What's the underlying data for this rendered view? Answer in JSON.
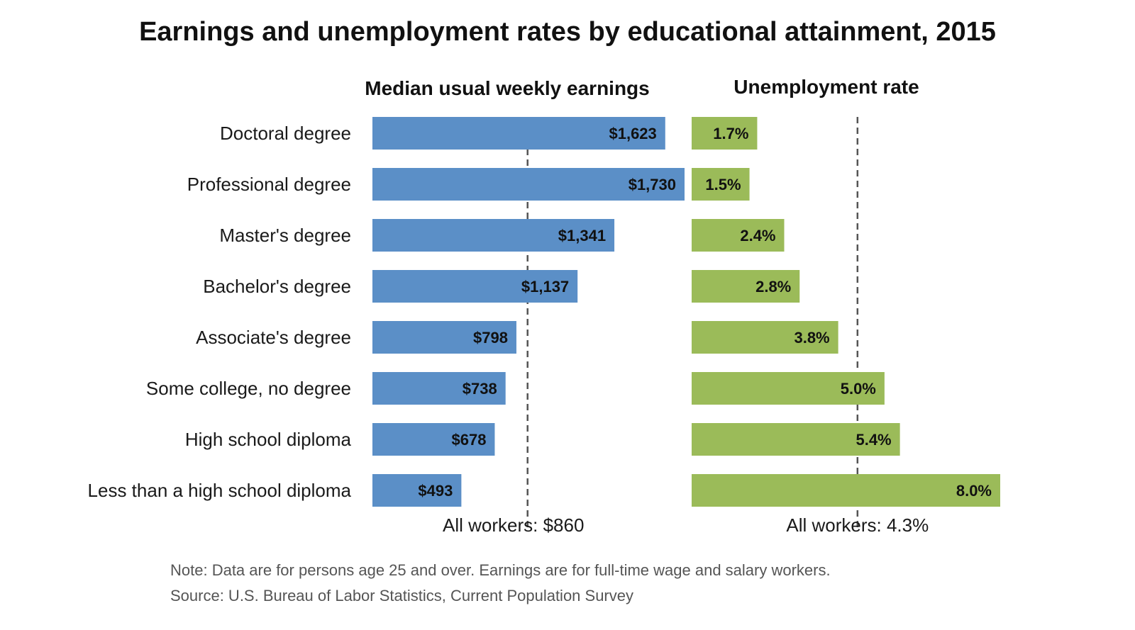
{
  "title": "Earnings and unemployment rates by educational attainment, 2015",
  "note": "Note: Data are for persons age 25 and over. Earnings are for full-time wage and salary workers.",
  "source": "Source: U.S. Bureau of Labor Statistics, Current Population Survey",
  "colors": {
    "earnings": "#5b8fc7",
    "unemployment": "#9bbb59",
    "reference_line": "#555555"
  },
  "chart_data": [
    {
      "type": "bar",
      "orientation": "horizontal",
      "title": "Median usual weekly earnings",
      "categories": [
        "Doctoral degree",
        "Professional degree",
        "Master's degree",
        "Bachelor's degree",
        "Associate's degree",
        "Some college, no degree",
        "High school diploma",
        "Less than a high school diploma"
      ],
      "values": [
        1623,
        1730,
        1341,
        1137,
        798,
        738,
        678,
        493
      ],
      "value_labels": [
        "$1,623",
        "$1,730",
        "$1,341",
        "$1,137",
        "$798",
        "$738",
        "$678",
        "$493"
      ],
      "reference": {
        "value": 860,
        "label": "All workers: $860"
      },
      "xlim": [
        0,
        1730
      ]
    },
    {
      "type": "bar",
      "orientation": "horizontal",
      "title": "Unemployment rate",
      "categories": [
        "Doctoral degree",
        "Professional degree",
        "Master's degree",
        "Bachelor's degree",
        "Associate's degree",
        "Some college, no degree",
        "High school diploma",
        "Less than a high school diploma"
      ],
      "values": [
        1.7,
        1.5,
        2.4,
        2.8,
        3.8,
        5.0,
        5.4,
        8.0
      ],
      "value_labels": [
        "1.7%",
        "1.5%",
        "2.4%",
        "2.8%",
        "3.8%",
        "5.0%",
        "5.4%",
        "8.0%"
      ],
      "reference": {
        "value": 4.3,
        "label": "All workers: 4.3%"
      },
      "xlim": [
        0,
        8.0
      ]
    }
  ]
}
